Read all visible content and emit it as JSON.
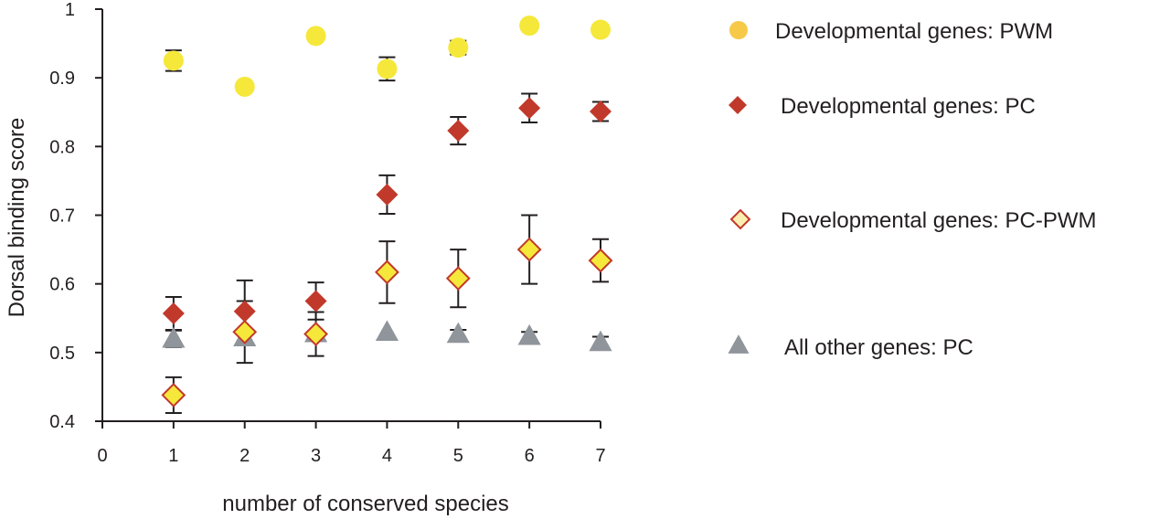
{
  "chart_data": {
    "type": "scatter",
    "title": "",
    "xlabel": "number of conserved species",
    "ylabel": "Dorsal binding score",
    "xlim": [
      0,
      7
    ],
    "ylim": [
      0.4,
      1
    ],
    "x_ticks": [
      "0",
      "1",
      "2",
      "3",
      "4",
      "5",
      "6",
      "7"
    ],
    "y_ticks": [
      "0.4",
      "0.5",
      "0.6",
      "0.7",
      "0.8",
      "0.9",
      "1"
    ],
    "grid": false,
    "legend_position": "right",
    "series": [
      {
        "name": "Developmental genes: PWM",
        "marker": "circle",
        "color": "#f5e83a",
        "legend_color": "#f7c948",
        "x": [
          1,
          2,
          3,
          4,
          5,
          6,
          7
        ],
        "y": [
          0.925,
          0.887,
          0.961,
          0.913,
          0.944,
          0.976,
          0.97
        ],
        "err": [
          0.015,
          0,
          0,
          0.017,
          0.01,
          0.003,
          0.003
        ]
      },
      {
        "name": "Developmental genes: PC",
        "marker": "diamond",
        "color": "#c1392b",
        "x": [
          1,
          2,
          3,
          4,
          5,
          6,
          7
        ],
        "y": [
          0.557,
          0.56,
          0.575,
          0.73,
          0.823,
          0.856,
          0.851
        ],
        "err": [
          0.024,
          0.045,
          0.027,
          0.028,
          0.02,
          0.021,
          0.014
        ]
      },
      {
        "name": "Developmental genes: PC-PWM",
        "marker": "diamond-open",
        "color": "#f5e83a",
        "stroke": "#c1392b",
        "legend_color": "#fbeeb0",
        "x": [
          1,
          2,
          3,
          4,
          5,
          6,
          7
        ],
        "y": [
          0.438,
          0.53,
          0.527,
          0.617,
          0.608,
          0.65,
          0.634
        ],
        "err": [
          0.026,
          0.045,
          0.032,
          0.045,
          0.042,
          0.05,
          0.031
        ]
      },
      {
        "name": "All other genes: PC",
        "marker": "triangle",
        "color": "#8f959b",
        "x": [
          1,
          2,
          3,
          4,
          5,
          6,
          7
        ],
        "y": [
          0.52,
          0.522,
          0.528,
          0.53,
          0.527,
          0.524,
          0.515
        ],
        "err": [
          0.012,
          0,
          0,
          0,
          0.006,
          0.006,
          0.008
        ]
      }
    ]
  }
}
